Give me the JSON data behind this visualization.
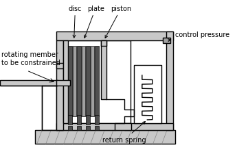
{
  "bg_color": "#ffffff",
  "lc": "#000000",
  "lgray": "#c8c8c8",
  "mgray": "#a0a0a0",
  "dgray": "#505050",
  "wht": "#ffffff",
  "labels": {
    "disc": "disc",
    "plate": "plate",
    "piston": "piston",
    "control_pressure": "control pressure",
    "rotating_member": "rotating member\nto be constrained",
    "return_spring": "return spring"
  },
  "fs": 7.0
}
